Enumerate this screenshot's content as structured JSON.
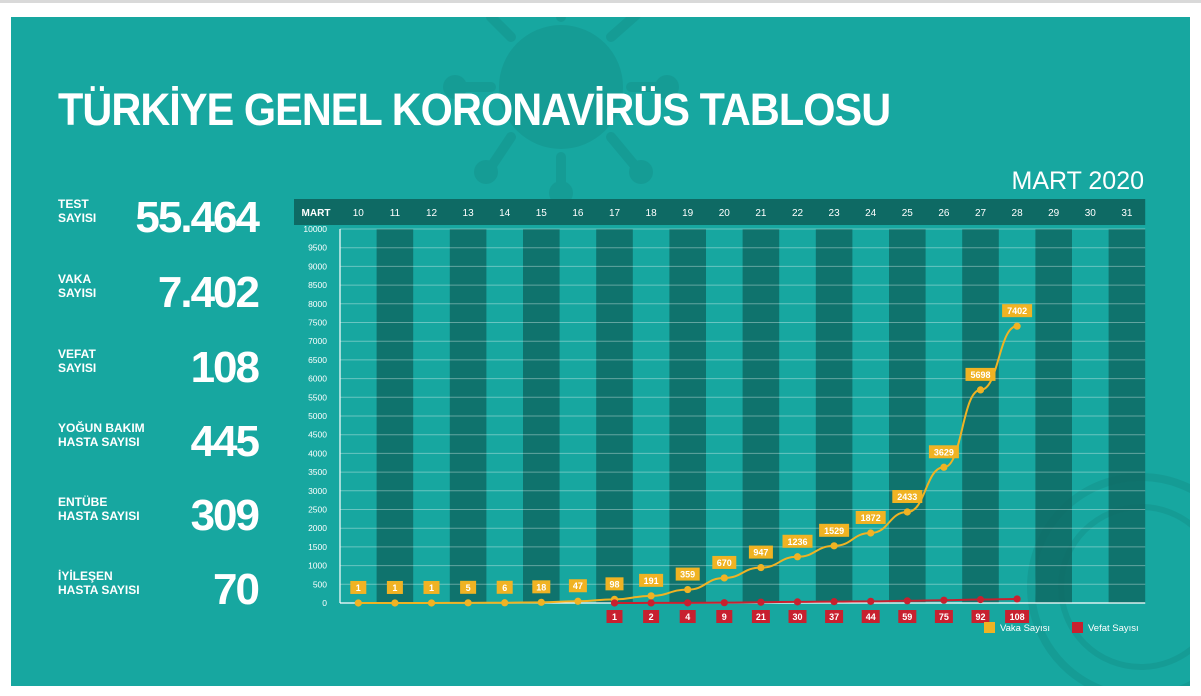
{
  "title": "TÜRKİYE GENEL KORONAVİRÜS TABLOSU",
  "month_label": "MART 2020",
  "stats": [
    {
      "label_line1": "TEST",
      "label_line2": "SAYISI",
      "value": "55.464"
    },
    {
      "label_line1": "VAKA",
      "label_line2": "SAYISI",
      "value": "7.402"
    },
    {
      "label_line1": "VEFAT",
      "label_line2": "SAYISI",
      "value": "108"
    },
    {
      "label_line1": "YOĞUN BAKIM",
      "label_line2": "HASTA SAYISI",
      "value": "445"
    },
    {
      "label_line1": "ENTÜBE",
      "label_line2": "HASTA SAYISI",
      "value": "309"
    },
    {
      "label_line1": "İYİLEŞEN",
      "label_line2": "HASTA SAYISI",
      "value": "70"
    }
  ],
  "colors": {
    "background": "#17a7a0",
    "dark_column": "#0e6a64",
    "case": "#f0b323",
    "death": "#c8202f"
  },
  "chart_data": {
    "type": "line",
    "x_axis_label": "MART",
    "x": [
      10,
      11,
      12,
      13,
      14,
      15,
      16,
      17,
      18,
      19,
      20,
      21,
      22,
      23,
      24,
      25,
      26,
      27,
      28,
      29,
      30,
      31
    ],
    "ylim": [
      0,
      10000
    ],
    "y_ticks": [
      0,
      500,
      1000,
      1500,
      2000,
      2500,
      3000,
      3500,
      4000,
      4500,
      5000,
      5500,
      6000,
      6500,
      7000,
      7500,
      8000,
      8500,
      9000,
      9500,
      10000
    ],
    "grid": true,
    "legend_position": "bottom-right",
    "series": [
      {
        "name": "Vaka Sayısı",
        "color": "#f0b323",
        "x": [
          10,
          11,
          12,
          13,
          14,
          15,
          16,
          17,
          18,
          19,
          20,
          21,
          22,
          23,
          24,
          25,
          26,
          27,
          28
        ],
        "values": [
          1,
          1,
          1,
          5,
          6,
          18,
          47,
          98,
          191,
          359,
          670,
          947,
          1236,
          1529,
          1872,
          2433,
          3629,
          5698,
          7402
        ]
      },
      {
        "name": "Vefat Sayısı",
        "color": "#c8202f",
        "x": [
          17,
          18,
          19,
          20,
          21,
          22,
          23,
          24,
          25,
          26,
          27,
          28
        ],
        "values": [
          1,
          2,
          4,
          9,
          21,
          30,
          37,
          44,
          59,
          75,
          92,
          108
        ]
      }
    ]
  }
}
